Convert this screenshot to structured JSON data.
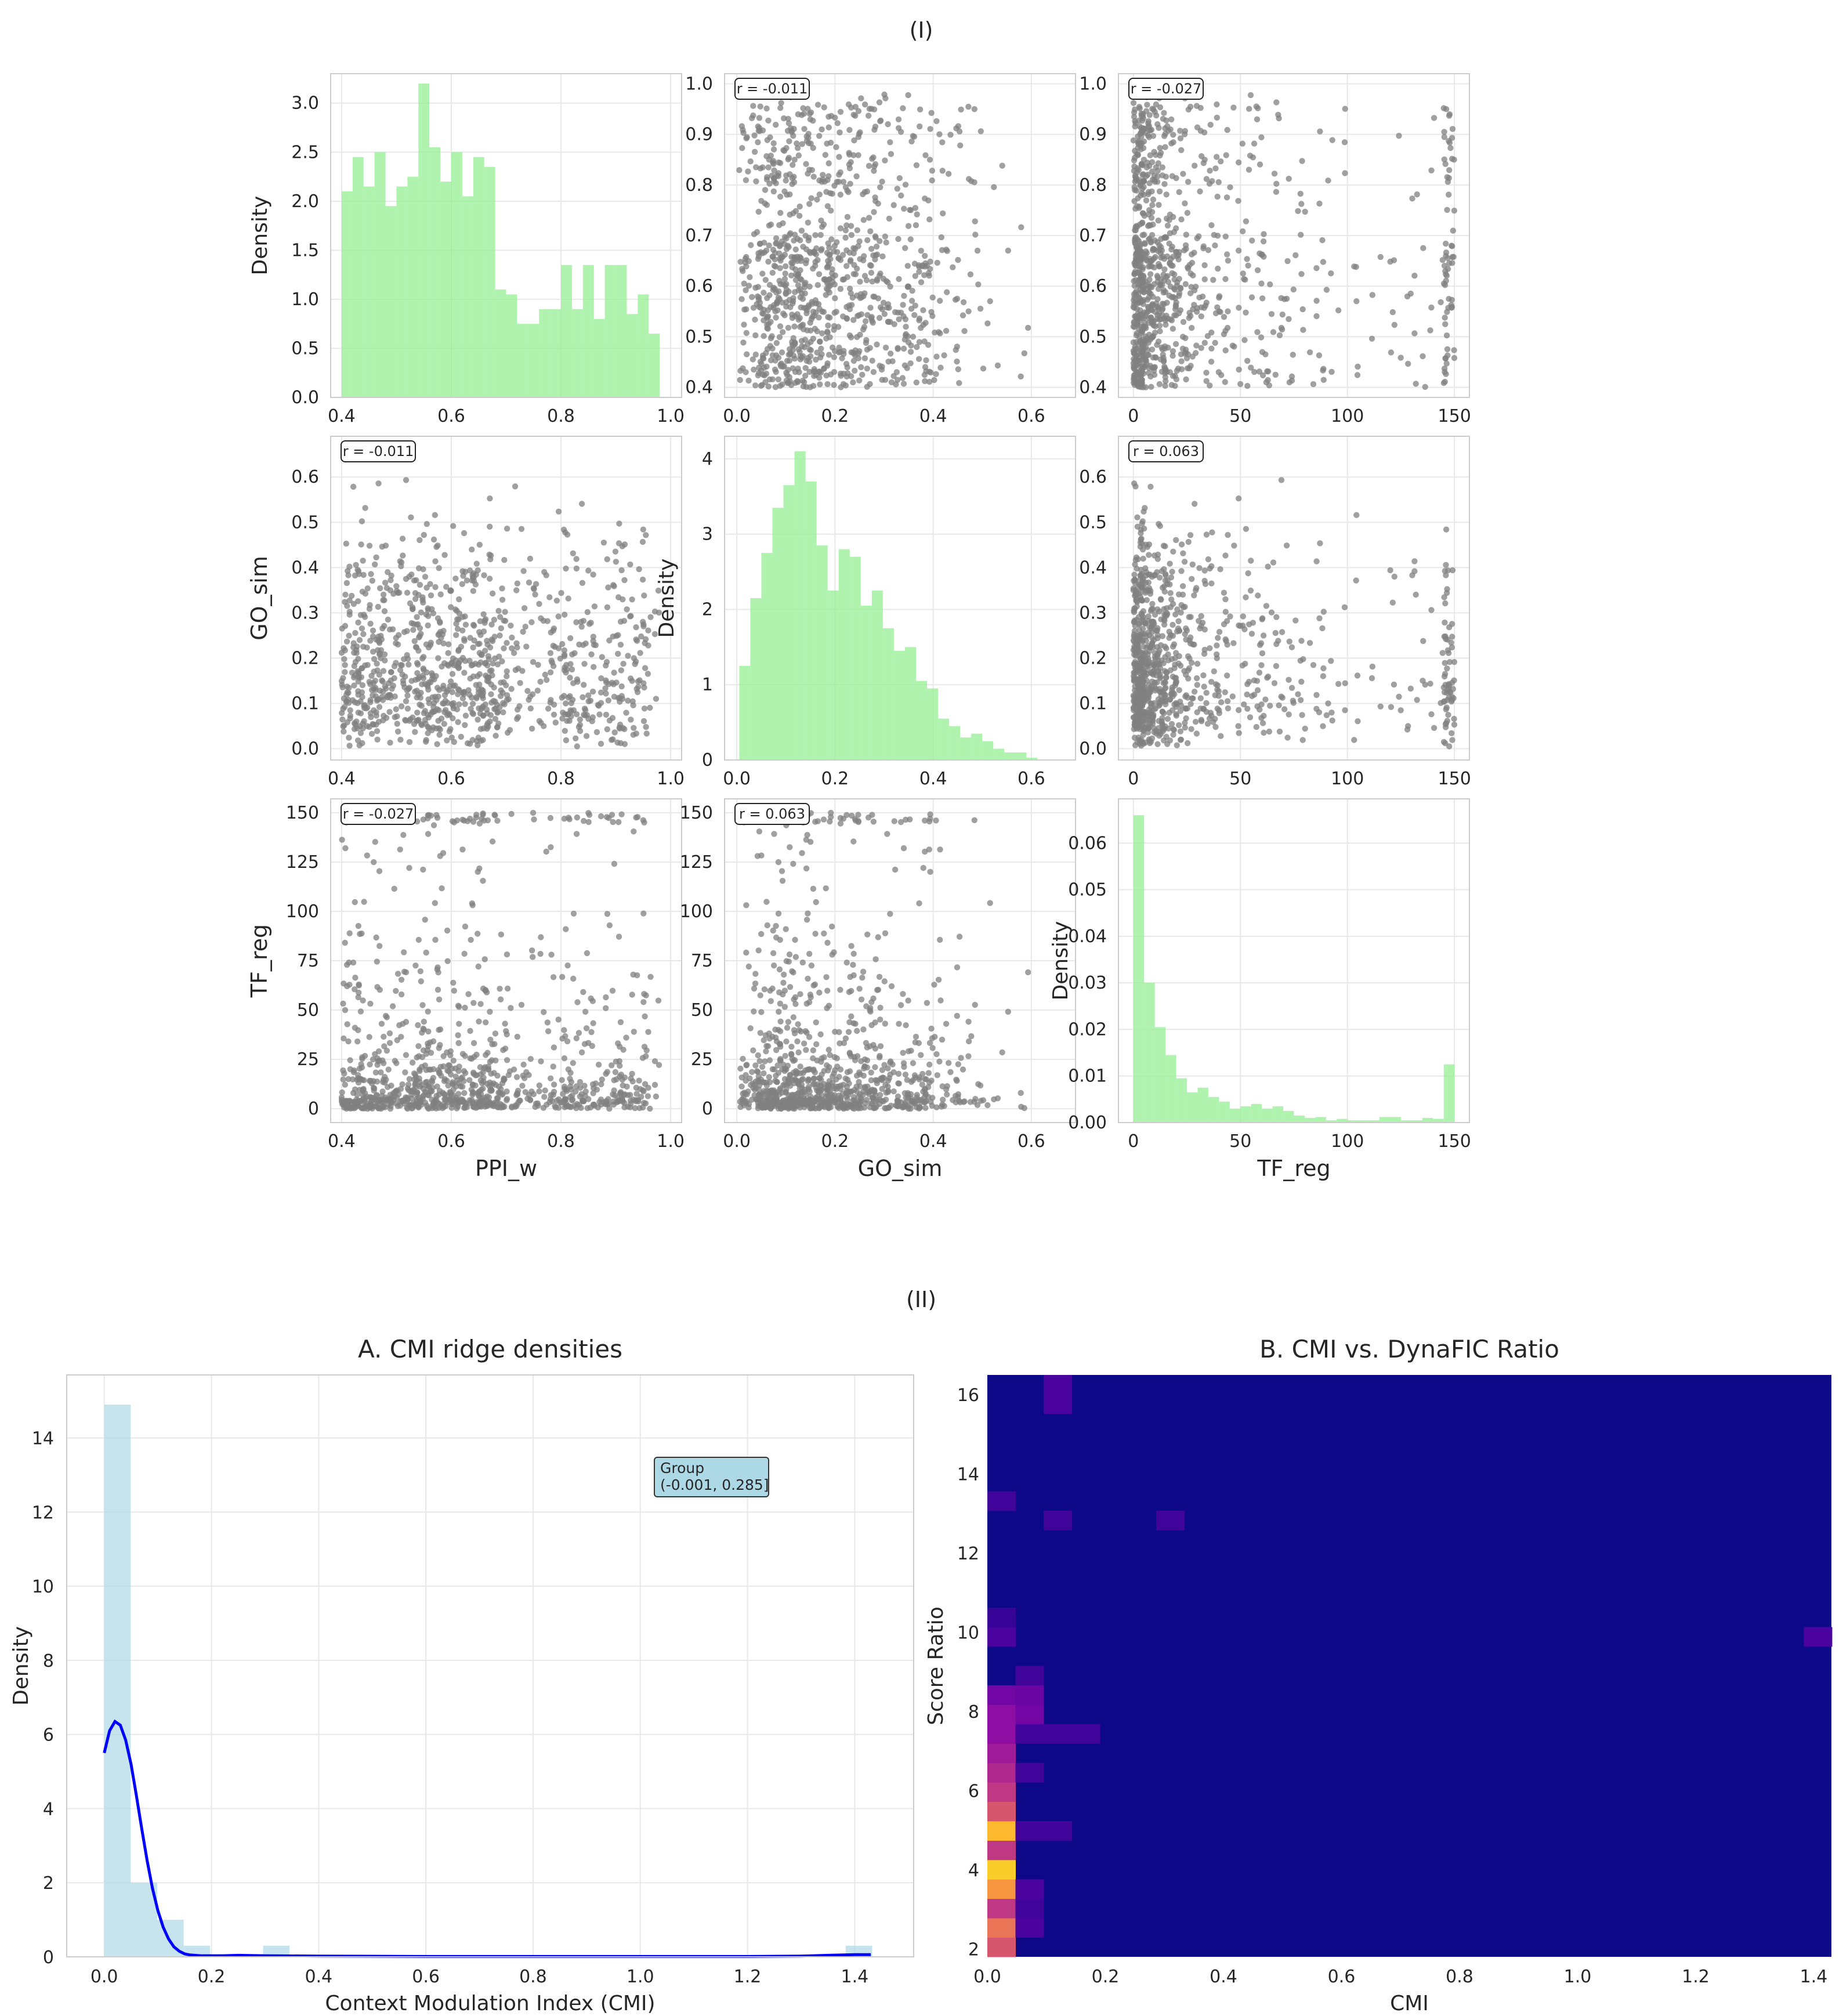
{
  "figure": {
    "section_labels": [
      "(I)",
      "(II)"
    ]
  },
  "chart_data": [
    {
      "id": "pairplot",
      "type": "scatter",
      "description_type": "pairplot",
      "variables": [
        "PPI_w",
        "GO_sim",
        "TF_reg"
      ],
      "diagonal_ylabel": "Density",
      "ranges": {
        "PPI_w": [
          0.38,
          1.02
        ],
        "GO_sim": [
          -0.025,
          0.69
        ],
        "TF_reg": [
          -7,
          157
        ]
      },
      "ticks": {
        "PPI_w": [
          0.4,
          0.6,
          0.8,
          1.0
        ],
        "GO_sim": [
          0.0,
          0.2,
          0.4,
          0.6
        ],
        "TF_reg": [
          0,
          50,
          100,
          150
        ],
        "GO_sim_y": [
          0.0,
          0.1,
          0.2,
          0.3,
          0.4,
          0.5,
          0.6
        ],
        "PPI_w_y": [
          0.4,
          0.5,
          0.6,
          0.7,
          0.8,
          0.9,
          1.0
        ],
        "TF_reg_y": [
          0,
          25,
          50,
          75,
          100,
          125,
          150
        ]
      },
      "correlations": [
        {
          "x": "GO_sim",
          "y": "PPI_w",
          "label": "r = -0.011"
        },
        {
          "x": "TF_reg",
          "y": "PPI_w",
          "label": "r = -0.027"
        },
        {
          "x": "PPI_w",
          "y": "GO_sim",
          "label": "r = -0.011"
        },
        {
          "x": "TF_reg",
          "y": "GO_sim",
          "label": "r = 0.063"
        },
        {
          "x": "PPI_w",
          "y": "TF_reg",
          "label": "r = -0.027"
        },
        {
          "x": "GO_sim",
          "y": "TF_reg",
          "label": "r = 0.063"
        }
      ],
      "histograms": {
        "PPI_w": {
          "bin_start": 0.4,
          "bin_width": 0.02,
          "ylim": [
            0,
            3.3
          ],
          "yticks": [
            0.0,
            0.5,
            1.0,
            1.5,
            2.0,
            2.5,
            3.0
          ],
          "density": [
            2.1,
            2.45,
            2.15,
            2.5,
            1.95,
            2.15,
            2.25,
            3.2,
            2.55,
            2.2,
            2.5,
            2.05,
            2.45,
            2.35,
            1.1,
            1.05,
            0.75,
            0.75,
            0.9,
            0.9,
            1.35,
            0.9,
            1.35,
            0.8,
            1.35,
            1.35,
            0.85,
            1.05,
            0.65
          ]
        },
        "GO_sim": {
          "bin_start": 0.005,
          "bin_width": 0.0225,
          "ylim": [
            0,
            4.3
          ],
          "yticks": [
            0,
            1,
            2,
            3,
            4
          ],
          "density": [
            1.25,
            2.15,
            2.75,
            3.35,
            3.65,
            4.1,
            3.7,
            2.85,
            2.25,
            2.8,
            2.7,
            2.05,
            2.25,
            1.75,
            1.45,
            1.5,
            1.05,
            0.95,
            0.55,
            0.45,
            0.3,
            0.35,
            0.25,
            0.15,
            0.1,
            0.1,
            0.03
          ]
        },
        "TF_reg": {
          "bin_start": 0,
          "bin_width": 5,
          "ylim": [
            0,
            0.0695
          ],
          "yticks": [
            0.0,
            0.01,
            0.02,
            0.03,
            0.04,
            0.05,
            0.06
          ],
          "density": [
            0.066,
            0.03,
            0.0205,
            0.0145,
            0.0095,
            0.0065,
            0.0075,
            0.0055,
            0.0045,
            0.003,
            0.0035,
            0.004,
            0.003,
            0.0035,
            0.0025,
            0.0015,
            0.001,
            0.0012,
            0.0005,
            0.0008,
            0.0005,
            0.0005,
            0.0005,
            0.0012,
            0.0012,
            0.0005,
            0.0005,
            0.001,
            0.0008,
            0.0125
          ]
        }
      },
      "n_points": 1000
    },
    {
      "id": "ridge",
      "type": "bar",
      "title": "A. CMI ridge densities",
      "xlabel": "Context Modulation Index (CMI)",
      "ylabel": "Density",
      "xlim": [
        -0.07,
        1.51
      ],
      "ylim": [
        0,
        15.7
      ],
      "xticks": [
        0.0,
        0.2,
        0.4,
        0.6,
        0.8,
        1.0,
        1.2,
        1.4
      ],
      "yticks": [
        0,
        2,
        4,
        6,
        8,
        10,
        12,
        14
      ],
      "hist_bin_start": 0.0,
      "hist_bin_width": 0.0494,
      "hist_density": [
        14.9,
        2.0,
        1.0,
        0.3,
        0.0,
        0.0,
        0.3,
        0,
        0,
        0,
        0,
        0,
        0,
        0,
        0,
        0,
        0,
        0,
        0,
        0,
        0,
        0,
        0,
        0,
        0,
        0,
        0,
        0,
        0.3
      ],
      "kde": {
        "x": [
          0.0,
          0.01,
          0.02,
          0.03,
          0.04,
          0.05,
          0.06,
          0.07,
          0.08,
          0.09,
          0.1,
          0.11,
          0.12,
          0.13,
          0.14,
          0.15,
          0.16,
          0.18,
          0.2,
          0.22,
          0.25,
          0.3,
          0.4,
          0.6,
          0.8,
          1.0,
          1.2,
          1.3,
          1.35,
          1.4,
          1.43
        ],
        "y": [
          5.5,
          6.1,
          6.35,
          6.25,
          5.85,
          5.2,
          4.35,
          3.45,
          2.6,
          1.85,
          1.25,
          0.8,
          0.48,
          0.27,
          0.15,
          0.08,
          0.05,
          0.03,
          0.03,
          0.03,
          0.04,
          0.03,
          0.02,
          0.01,
          0.01,
          0.01,
          0.01,
          0.02,
          0.04,
          0.06,
          0.06
        ]
      },
      "legend": {
        "title": "Group",
        "entry": "(-0.001, 0.285]",
        "location": "upper-right"
      },
      "colors": {
        "bar": "#add8e6",
        "kde": "#0000ff"
      }
    },
    {
      "id": "heatmap",
      "type": "heatmap",
      "title": "B. CMI vs. DynaFIC Ratio",
      "xlabel": "CMI",
      "ylabel": "Score Ratio",
      "xlim": [
        0.0,
        1.43
      ],
      "ylim": [
        1.8,
        16.5
      ],
      "xticks": [
        0.0,
        0.2,
        0.4,
        0.6,
        0.8,
        1.0,
        1.2,
        1.4
      ],
      "yticks": [
        2,
        4,
        6,
        8,
        10,
        12,
        14,
        16
      ],
      "cell_width": 0.0477,
      "cell_height": 0.49,
      "colormap": "plasma",
      "background_color": "#0d0887",
      "cells": [
        {
          "col": 0,
          "row": 0,
          "v": 0.55
        },
        {
          "col": 0,
          "row": 1,
          "v": 0.65
        },
        {
          "col": 0,
          "row": 2,
          "v": 0.45
        },
        {
          "col": 0,
          "row": 3,
          "v": 0.75
        },
        {
          "col": 0,
          "row": 4,
          "v": 0.9
        },
        {
          "col": 0,
          "row": 5,
          "v": 0.45
        },
        {
          "col": 0,
          "row": 6,
          "v": 0.85
        },
        {
          "col": 0,
          "row": 7,
          "v": 0.55
        },
        {
          "col": 0,
          "row": 8,
          "v": 0.45
        },
        {
          "col": 0,
          "row": 9,
          "v": 0.4
        },
        {
          "col": 0,
          "row": 10,
          "v": 0.35
        },
        {
          "col": 0,
          "row": 11,
          "v": 0.3
        },
        {
          "col": 0,
          "row": 12,
          "v": 0.3
        },
        {
          "col": 0,
          "row": 13,
          "v": 0.22
        },
        {
          "col": 0,
          "row": 16,
          "v": 0.12
        },
        {
          "col": 0,
          "row": 17,
          "v": 0.08
        },
        {
          "col": 0,
          "row": 23,
          "v": 0.1
        },
        {
          "col": 1,
          "row": 1,
          "v": 0.12
        },
        {
          "col": 1,
          "row": 2,
          "v": 0.1
        },
        {
          "col": 1,
          "row": 3,
          "v": 0.12
        },
        {
          "col": 1,
          "row": 6,
          "v": 0.1
        },
        {
          "col": 1,
          "row": 9,
          "v": 0.1
        },
        {
          "col": 1,
          "row": 11,
          "v": 0.1
        },
        {
          "col": 1,
          "row": 12,
          "v": 0.22
        },
        {
          "col": 1,
          "row": 13,
          "v": 0.2
        },
        {
          "col": 1,
          "row": 14,
          "v": 0.1
        },
        {
          "col": 2,
          "row": 6,
          "v": 0.1
        },
        {
          "col": 2,
          "row": 11,
          "v": 0.1
        },
        {
          "col": 2,
          "row": 22,
          "v": 0.1
        },
        {
          "col": 2,
          "row": 28,
          "v": 0.12
        },
        {
          "col": 2,
          "row": 29,
          "v": 0.12
        },
        {
          "col": 3,
          "row": 11,
          "v": 0.1
        },
        {
          "col": 6,
          "row": 22,
          "v": 0.1
        },
        {
          "col": 29,
          "row": 16,
          "v": 0.12
        }
      ]
    }
  ]
}
